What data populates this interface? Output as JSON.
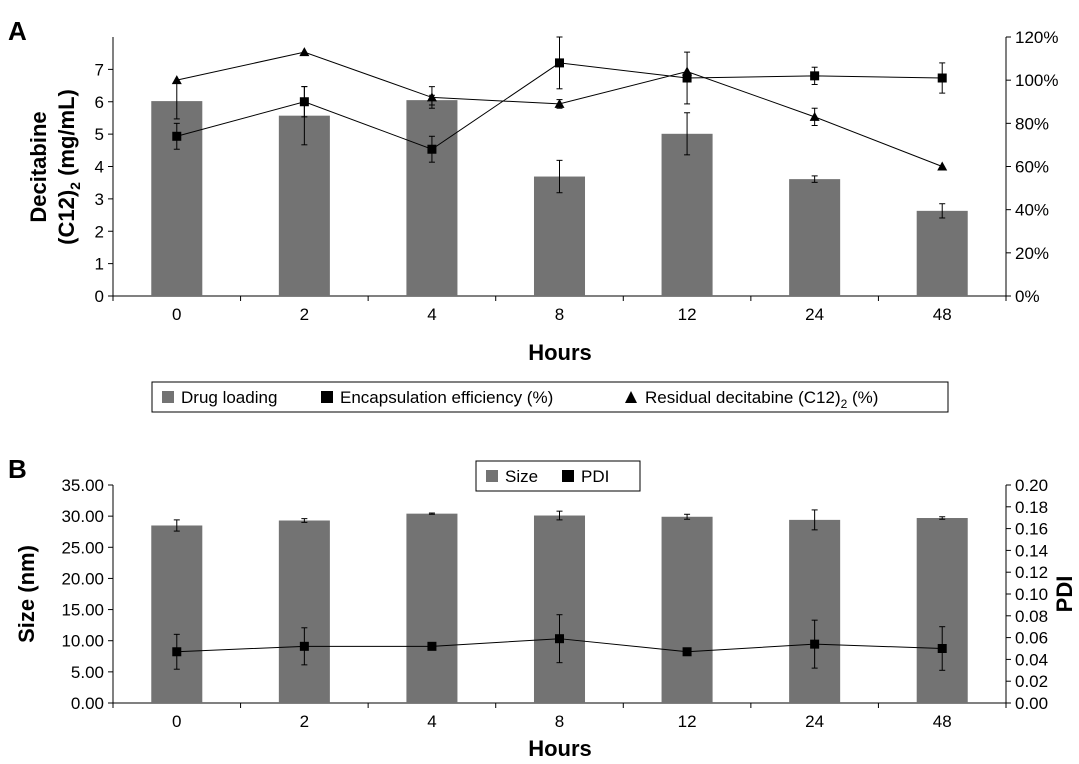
{
  "colors": {
    "bar": "#737373",
    "axis": "#000000",
    "marker": "#000000"
  },
  "chart_data": [
    {
      "type": "bar",
      "panel_label": "A",
      "categories": [
        "0",
        "2",
        "4",
        "8",
        "12",
        "24",
        "48"
      ],
      "xlabel": "Hours",
      "ylabel_line1": "Decitabine",
      "ylabel_line2": "(C12)",
      "ylabel_sub": "2",
      "ylabel_line2_tail": " (mg/mL)",
      "ylim": [
        0,
        8
      ],
      "yticks": [
        0,
        1,
        2,
        3,
        4,
        5,
        6,
        7
      ],
      "y2lim": [
        0,
        120
      ],
      "y2ticks": [
        "0%",
        "20%",
        "40%",
        "60%",
        "80%",
        "100%",
        "120%"
      ],
      "legend_position": "below plot",
      "legend": {
        "bar": "Drug loading",
        "square": "Encapsulation efficiency (%)",
        "triangle_pre": "Residual decitabine (C12)",
        "triangle_sub": "2",
        "triangle_post": " (%)"
      },
      "series": [
        {
          "name": "Drug loading",
          "kind": "bar",
          "axis": "left",
          "values": [
            6.02,
            5.57,
            6.05,
            3.69,
            5.01,
            3.61,
            2.63
          ],
          "errors": [
            0.55,
            0.9,
            0.15,
            0.5,
            0.65,
            0.1,
            0.22
          ]
        },
        {
          "name": "Encapsulation efficiency (%)",
          "kind": "line-square",
          "axis": "right",
          "values": [
            74,
            90,
            68,
            108,
            101,
            102,
            101
          ],
          "errors": [
            6,
            7,
            6,
            12,
            12,
            4,
            7
          ]
        },
        {
          "name": "Residual decitabine (C12)2 (%)",
          "kind": "line-triangle",
          "axis": "right",
          "values": [
            100,
            113,
            92,
            89,
            104,
            83,
            60
          ],
          "errors": [
            0,
            0,
            5,
            2,
            0,
            4,
            0
          ]
        }
      ]
    },
    {
      "type": "bar",
      "panel_label": "B",
      "categories": [
        "0",
        "2",
        "4",
        "8",
        "12",
        "24",
        "48"
      ],
      "xlabel": "Hours",
      "ylabel": "Size (nm)",
      "y2label": "PDI",
      "ylim": [
        0,
        35
      ],
      "yticks": [
        "0.00",
        "5.00",
        "10.00",
        "15.00",
        "20.00",
        "25.00",
        "30.00",
        "35.00"
      ],
      "y2lim": [
        0,
        0.2
      ],
      "y2ticks": [
        "0.00",
        "0.02",
        "0.04",
        "0.06",
        "0.08",
        "0.10",
        "0.12",
        "0.14",
        "0.16",
        "0.18",
        "0.20"
      ],
      "legend_position": "top-center",
      "legend": {
        "bar": "Size",
        "square": "PDI"
      },
      "series": [
        {
          "name": "Size",
          "kind": "bar",
          "axis": "left",
          "values": [
            28.5,
            29.3,
            30.4,
            30.1,
            29.9,
            29.4,
            29.7
          ],
          "errors": [
            0.9,
            0.3,
            0.1,
            0.7,
            0.4,
            1.6,
            0.2
          ]
        },
        {
          "name": "PDI",
          "kind": "line-square",
          "axis": "right",
          "values": [
            0.047,
            0.052,
            0.052,
            0.059,
            0.047,
            0.054,
            0.05
          ],
          "errors": [
            0.016,
            0.017,
            0.003,
            0.022,
            0.003,
            0.022,
            0.02
          ]
        }
      ]
    }
  ]
}
